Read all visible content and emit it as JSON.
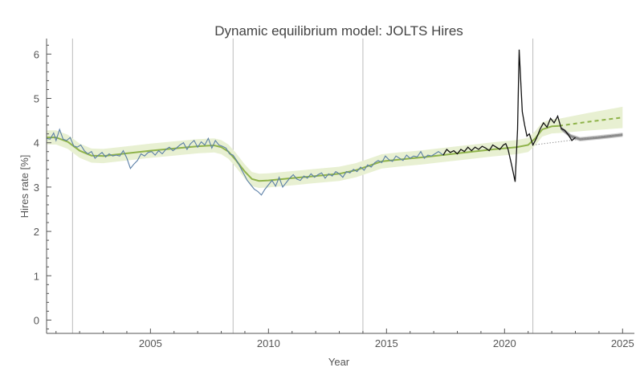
{
  "chart_data": {
    "type": "line",
    "title": "Dynamic equilibrium model: JOLTS Hires",
    "xlabel": "Year",
    "ylabel": "Hires rate [%]",
    "xlim": [
      2000.6,
      2025.5
    ],
    "ylim": [
      -0.3,
      6.35
    ],
    "x_ticks": [
      2005,
      2010,
      2015,
      2020,
      2025
    ],
    "y_ticks": [
      0,
      1,
      2,
      3,
      4,
      5,
      6
    ],
    "vertical_markers": [
      2001.7,
      2008.5,
      2014.0,
      2021.2
    ],
    "colors": {
      "data_blue": "#5b7fa6",
      "data_black": "#111111",
      "model_green": "#8fb34a",
      "band_green": "#e8f0d2",
      "forecast_gray": "#8a8a8a",
      "marker_line": "#bbbbbb",
      "axis": "#555555"
    },
    "series": [
      {
        "role": "model",
        "points": [
          [
            2000.6,
            4.12
          ],
          [
            2001.0,
            4.12
          ],
          [
            2001.5,
            4.02
          ],
          [
            2002.0,
            3.82
          ],
          [
            2002.5,
            3.71
          ],
          [
            2003.0,
            3.7
          ],
          [
            2004.0,
            3.76
          ],
          [
            2005.0,
            3.82
          ],
          [
            2006.0,
            3.87
          ],
          [
            2007.0,
            3.92
          ],
          [
            2007.7,
            3.94
          ],
          [
            2008.0,
            3.9
          ],
          [
            2008.3,
            3.8
          ],
          [
            2008.6,
            3.62
          ],
          [
            2009.0,
            3.35
          ],
          [
            2009.3,
            3.18
          ],
          [
            2009.6,
            3.14
          ],
          [
            2010.0,
            3.15
          ],
          [
            2011.0,
            3.2
          ],
          [
            2012.0,
            3.25
          ],
          [
            2013.0,
            3.3
          ],
          [
            2013.7,
            3.38
          ],
          [
            2014.2,
            3.47
          ],
          [
            2014.8,
            3.58
          ],
          [
            2015.5,
            3.62
          ],
          [
            2016.5,
            3.67
          ],
          [
            2017.5,
            3.73
          ],
          [
            2018.5,
            3.79
          ],
          [
            2019.5,
            3.85
          ],
          [
            2020.5,
            3.9
          ],
          [
            2021.0,
            3.95
          ],
          [
            2021.3,
            4.1
          ],
          [
            2021.6,
            4.3
          ],
          [
            2022.0,
            4.37
          ],
          [
            2022.3,
            4.38
          ]
        ]
      },
      {
        "role": "model-forecast-dashed",
        "points": [
          [
            2022.3,
            4.38
          ],
          [
            2023.5,
            4.47
          ],
          [
            2025.0,
            4.57
          ]
        ]
      },
      {
        "role": "model-baseline-dotted",
        "points": [
          [
            2021.2,
            3.95
          ],
          [
            2025.0,
            4.2
          ]
        ]
      },
      {
        "role": "forecast-gray",
        "points": [
          [
            2022.4,
            4.32
          ],
          [
            2022.8,
            4.15
          ],
          [
            2023.2,
            4.08
          ],
          [
            2024.0,
            4.12
          ],
          [
            2025.0,
            4.18
          ]
        ]
      },
      {
        "role": "data-blue",
        "points": [
          [
            2000.6,
            4.1
          ],
          [
            2000.75,
            4.08
          ],
          [
            2000.9,
            4.22
          ],
          [
            2001.0,
            4.05
          ],
          [
            2001.15,
            4.3
          ],
          [
            2001.3,
            4.08
          ],
          [
            2001.45,
            4.05
          ],
          [
            2001.6,
            4.12
          ],
          [
            2001.75,
            3.93
          ],
          [
            2001.9,
            3.9
          ],
          [
            2002.05,
            3.95
          ],
          [
            2002.2,
            3.82
          ],
          [
            2002.35,
            3.75
          ],
          [
            2002.5,
            3.8
          ],
          [
            2002.65,
            3.65
          ],
          [
            2002.8,
            3.72
          ],
          [
            2002.95,
            3.78
          ],
          [
            2003.1,
            3.68
          ],
          [
            2003.25,
            3.75
          ],
          [
            2003.4,
            3.7
          ],
          [
            2003.55,
            3.72
          ],
          [
            2003.7,
            3.7
          ],
          [
            2003.85,
            3.82
          ],
          [
            2004.0,
            3.65
          ],
          [
            2004.15,
            3.42
          ],
          [
            2004.3,
            3.52
          ],
          [
            2004.45,
            3.6
          ],
          [
            2004.6,
            3.75
          ],
          [
            2004.75,
            3.7
          ],
          [
            2004.9,
            3.78
          ],
          [
            2005.05,
            3.8
          ],
          [
            2005.2,
            3.72
          ],
          [
            2005.35,
            3.82
          ],
          [
            2005.5,
            3.75
          ],
          [
            2005.65,
            3.85
          ],
          [
            2005.8,
            3.9
          ],
          [
            2005.95,
            3.82
          ],
          [
            2006.1,
            3.88
          ],
          [
            2006.25,
            3.95
          ],
          [
            2006.4,
            4.0
          ],
          [
            2006.55,
            3.85
          ],
          [
            2006.7,
            3.98
          ],
          [
            2006.85,
            4.05
          ],
          [
            2007.0,
            3.9
          ],
          [
            2007.15,
            4.02
          ],
          [
            2007.3,
            3.95
          ],
          [
            2007.45,
            4.1
          ],
          [
            2007.6,
            3.88
          ],
          [
            2007.75,
            4.05
          ],
          [
            2007.9,
            3.95
          ],
          [
            2008.05,
            3.92
          ],
          [
            2008.2,
            3.88
          ],
          [
            2008.35,
            3.75
          ],
          [
            2008.5,
            3.72
          ],
          [
            2008.65,
            3.6
          ],
          [
            2008.8,
            3.45
          ],
          [
            2008.95,
            3.3
          ],
          [
            2009.1,
            3.15
          ],
          [
            2009.25,
            3.05
          ],
          [
            2009.4,
            2.95
          ],
          [
            2009.55,
            2.9
          ],
          [
            2009.7,
            2.82
          ],
          [
            2009.85,
            2.95
          ],
          [
            2010.0,
            3.05
          ],
          [
            2010.15,
            3.15
          ],
          [
            2010.3,
            3.02
          ],
          [
            2010.45,
            3.22
          ],
          [
            2010.6,
            3.0
          ],
          [
            2010.75,
            3.1
          ],
          [
            2010.9,
            3.2
          ],
          [
            2011.05,
            3.28
          ],
          [
            2011.2,
            3.18
          ],
          [
            2011.35,
            3.15
          ],
          [
            2011.5,
            3.25
          ],
          [
            2011.65,
            3.2
          ],
          [
            2011.8,
            3.3
          ],
          [
            2011.95,
            3.22
          ],
          [
            2012.1,
            3.28
          ],
          [
            2012.25,
            3.32
          ],
          [
            2012.4,
            3.2
          ],
          [
            2012.55,
            3.3
          ],
          [
            2012.7,
            3.25
          ],
          [
            2012.85,
            3.35
          ],
          [
            2013.0,
            3.3
          ],
          [
            2013.15,
            3.22
          ],
          [
            2013.3,
            3.35
          ],
          [
            2013.45,
            3.32
          ],
          [
            2013.6,
            3.4
          ],
          [
            2013.75,
            3.35
          ],
          [
            2013.9,
            3.45
          ],
          [
            2014.05,
            3.38
          ],
          [
            2014.2,
            3.5
          ],
          [
            2014.35,
            3.45
          ],
          [
            2014.5,
            3.55
          ],
          [
            2014.65,
            3.6
          ],
          [
            2014.8,
            3.55
          ],
          [
            2014.95,
            3.7
          ],
          [
            2015.1,
            3.62
          ],
          [
            2015.25,
            3.58
          ],
          [
            2015.4,
            3.7
          ],
          [
            2015.55,
            3.65
          ],
          [
            2015.7,
            3.6
          ],
          [
            2015.85,
            3.72
          ],
          [
            2016.0,
            3.65
          ],
          [
            2016.15,
            3.7
          ],
          [
            2016.3,
            3.68
          ],
          [
            2016.45,
            3.8
          ],
          [
            2016.6,
            3.65
          ],
          [
            2016.75,
            3.72
          ],
          [
            2016.9,
            3.7
          ],
          [
            2017.05,
            3.75
          ],
          [
            2017.2,
            3.8
          ],
          [
            2017.4,
            3.72
          ]
        ]
      },
      {
        "role": "data-black",
        "points": [
          [
            2017.4,
            3.72
          ],
          [
            2017.55,
            3.85
          ],
          [
            2017.7,
            3.78
          ],
          [
            2017.85,
            3.82
          ],
          [
            2018.0,
            3.75
          ],
          [
            2018.15,
            3.85
          ],
          [
            2018.3,
            3.8
          ],
          [
            2018.45,
            3.9
          ],
          [
            2018.6,
            3.82
          ],
          [
            2018.75,
            3.9
          ],
          [
            2018.9,
            3.85
          ],
          [
            2019.05,
            3.92
          ],
          [
            2019.2,
            3.88
          ],
          [
            2019.35,
            3.82
          ],
          [
            2019.5,
            3.95
          ],
          [
            2019.65,
            3.9
          ],
          [
            2019.8,
            3.85
          ],
          [
            2019.95,
            3.95
          ],
          [
            2020.05,
            3.98
          ],
          [
            2020.15,
            3.85
          ],
          [
            2020.3,
            3.5
          ],
          [
            2020.45,
            3.12
          ],
          [
            2020.55,
            4.3
          ],
          [
            2020.62,
            6.1
          ],
          [
            2020.75,
            4.7
          ],
          [
            2020.85,
            4.4
          ],
          [
            2020.95,
            4.15
          ],
          [
            2021.05,
            4.2
          ],
          [
            2021.2,
            3.95
          ],
          [
            2021.35,
            4.1
          ],
          [
            2021.5,
            4.3
          ],
          [
            2021.65,
            4.45
          ],
          [
            2021.8,
            4.35
          ],
          [
            2021.95,
            4.55
          ],
          [
            2022.1,
            4.45
          ],
          [
            2022.25,
            4.6
          ],
          [
            2022.4,
            4.32
          ],
          [
            2022.55,
            4.28
          ],
          [
            2022.7,
            4.18
          ],
          [
            2022.85,
            4.05
          ],
          [
            2023.0,
            4.12
          ]
        ]
      }
    ]
  }
}
